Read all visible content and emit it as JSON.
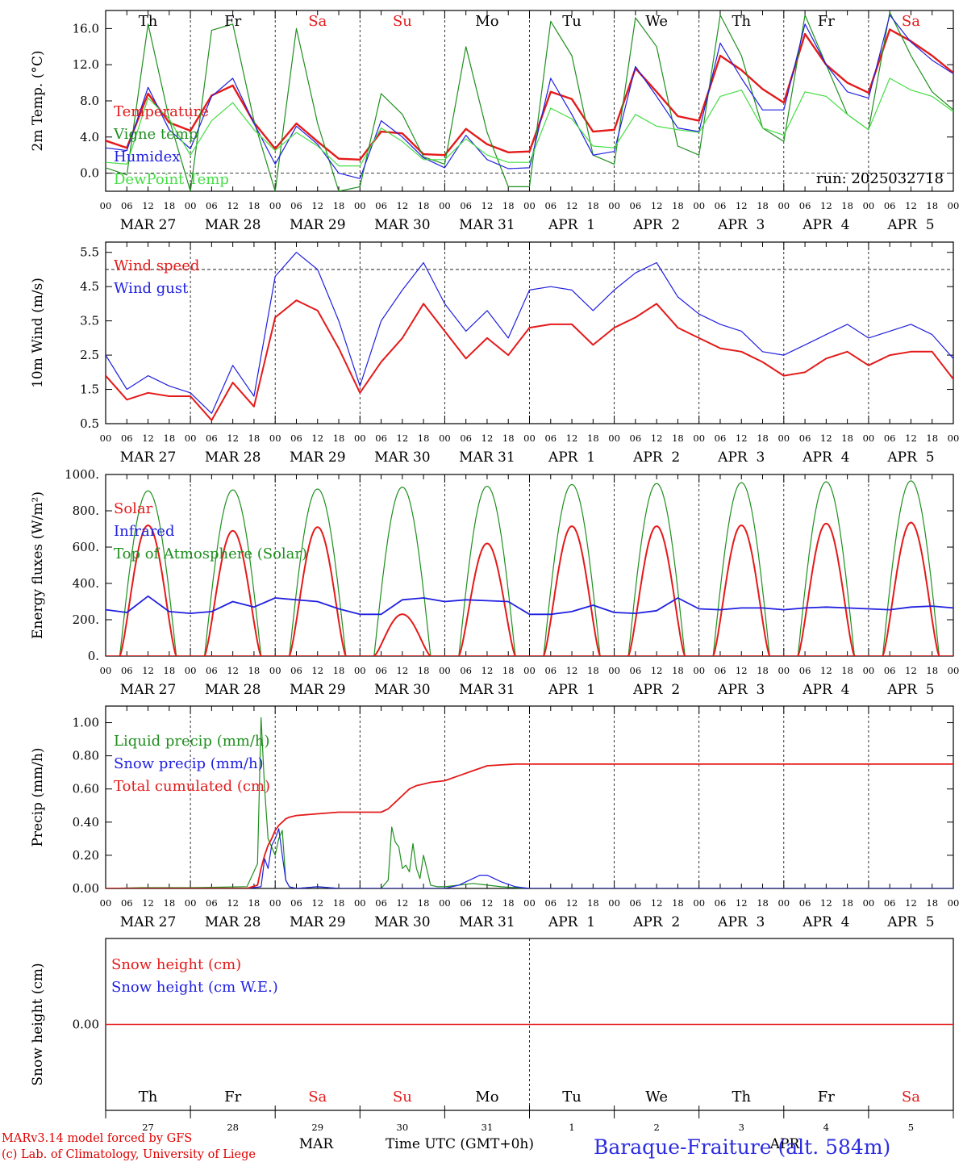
{
  "colors": {
    "red": "#e41a1a",
    "green": "#1f8f1f",
    "blue": "#2020e0",
    "light_green": "#44dd44",
    "black": "#000000"
  },
  "days_of_week": [
    {
      "label": "Th",
      "weekend": false
    },
    {
      "label": "Fr",
      "weekend": false
    },
    {
      "label": "Sa",
      "weekend": true
    },
    {
      "label": "Su",
      "weekend": true
    },
    {
      "label": "Mo",
      "weekend": false
    },
    {
      "label": "Tu",
      "weekend": false
    },
    {
      "label": "We",
      "weekend": false
    },
    {
      "label": "Th",
      "weekend": false
    },
    {
      "label": "Fr",
      "weekend": false
    },
    {
      "label": "Sa",
      "weekend": true
    }
  ],
  "dates": [
    "MAR 27",
    "MAR 28",
    "MAR 29",
    "MAR 30",
    "MAR 31",
    "APR  1",
    "APR  2",
    "APR  3",
    "APR  4",
    "APR  5"
  ],
  "hour_ticks": [
    "00",
    "06",
    "12",
    "18"
  ],
  "hour_end_label": "00",
  "bottom_axis": {
    "day_numbers": [
      "27",
      "28",
      "29",
      "30",
      "31",
      "1",
      "2",
      "3",
      "4",
      "5"
    ],
    "month_left": "MAR",
    "month_right": "APR",
    "xlabel": "Time UTC (GMT+0h)"
  },
  "footer": {
    "model": "MARv3.14 model forced by GFS",
    "credit": "(c) Lab. of Climatology, University of Liege",
    "station": "Baraque-Fraiture (alt. 584m)"
  },
  "chart_data": [
    {
      "type": "line",
      "name": "temperature",
      "ylabel": "2m Temp. (°C)",
      "ylim": [
        -2.0,
        18.0
      ],
      "yticks": [
        "16.0",
        "12.0",
        "8.0",
        "4.0",
        "0.0"
      ],
      "ytick_values": [
        16,
        12,
        8,
        4,
        0
      ],
      "reference_line": 0.0,
      "annotation": "run: 2025032718",
      "legend": [
        {
          "label": "Temperature",
          "color": "#e41a1a"
        },
        {
          "label": "Vigne temp",
          "color": "#1f8f1f"
        },
        {
          "label": "Humidex",
          "color": "#2020e0"
        },
        {
          "label": "DewPoint Temp",
          "color": "#44dd44"
        }
      ],
      "x_hours": [
        0,
        6,
        12,
        18,
        24,
        30,
        36,
        42,
        48,
        54,
        60,
        66,
        72,
        78,
        84,
        90,
        96,
        102,
        108,
        114,
        120,
        126,
        132,
        138,
        144,
        150,
        156,
        162,
        168,
        174,
        180,
        186,
        192,
        198,
        204,
        210,
        216,
        222,
        228,
        234,
        240
      ],
      "series": [
        {
          "name": "Temperature",
          "color": "#e41a1a",
          "width": 2.4,
          "values": [
            3.6,
            2.8,
            8.8,
            5.6,
            4.7,
            8.6,
            9.7,
            5.6,
            2.7,
            5.5,
            3.5,
            1.6,
            1.5,
            4.6,
            4.4,
            2.1,
            2.0,
            4.9,
            3.2,
            2.3,
            2.4,
            9.0,
            8.2,
            4.6,
            4.8,
            11.6,
            9.0,
            6.3,
            5.8,
            13.0,
            11.4,
            9.3,
            7.8,
            15.4,
            12.0,
            10.0,
            8.9,
            15.9,
            14.6,
            13.0,
            11.1
          ]
        },
        {
          "name": "Vigne temp",
          "color": "#1f8f1f",
          "width": 1.2,
          "values": [
            0.6,
            -0.2,
            16.5,
            6.0,
            -2.0,
            15.8,
            16.5,
            5.8,
            -2.0,
            16.0,
            5.5,
            -2.0,
            -1.5,
            8.8,
            6.5,
            1.8,
            1.0,
            14.0,
            4.5,
            -1.5,
            -1.5,
            16.8,
            13.0,
            2.0,
            1.0,
            17.2,
            14.0,
            3.0,
            2.0,
            17.5,
            13.0,
            5.0,
            3.5,
            17.5,
            12.0,
            6.5,
            4.8,
            17.8,
            13.0,
            9.0,
            7.0
          ]
        },
        {
          "name": "Humidex",
          "color": "#2020e0",
          "width": 1.2,
          "values": [
            2.8,
            2.5,
            9.5,
            4.8,
            2.7,
            8.5,
            10.5,
            5.5,
            1.0,
            5.2,
            3.2,
            0.0,
            -0.6,
            5.8,
            4.0,
            1.7,
            0.6,
            4.2,
            1.5,
            0.5,
            0.6,
            10.5,
            6.5,
            2.0,
            2.4,
            11.8,
            8.5,
            5.0,
            4.6,
            14.4,
            10.5,
            7.0,
            7.0,
            16.5,
            12.0,
            9.0,
            8.3,
            17.5,
            14.5,
            12.5,
            11.0
          ]
        },
        {
          "name": "DewPoint Temp",
          "color": "#44dd44",
          "width": 1.2,
          "values": [
            1.2,
            1.0,
            8.3,
            6.0,
            2.0,
            5.8,
            7.8,
            4.8,
            2.5,
            4.5,
            3.0,
            0.8,
            0.8,
            5.0,
            3.5,
            1.5,
            1.5,
            3.8,
            2.0,
            1.2,
            1.2,
            7.2,
            6.0,
            3.0,
            2.8,
            6.5,
            5.2,
            4.8,
            4.5,
            8.5,
            9.2,
            5.0,
            4.2,
            9.0,
            8.5,
            6.5,
            4.8,
            10.5,
            9.2,
            8.5,
            6.8
          ]
        }
      ]
    },
    {
      "type": "line",
      "name": "wind",
      "ylabel": "10m Wind (m/s)",
      "ylim": [
        0.5,
        5.8
      ],
      "yticks": [
        "5.5",
        "4.5",
        "3.5",
        "2.5",
        "1.5",
        "0.5"
      ],
      "ytick_values": [
        5.5,
        4.5,
        3.5,
        2.5,
        1.5,
        0.5
      ],
      "reference_line": 5.0,
      "legend": [
        {
          "label": "Wind speed",
          "color": "#e41a1a"
        },
        {
          "label": "Wind gust",
          "color": "#2020e0"
        }
      ],
      "x_hours": [
        0,
        6,
        12,
        18,
        24,
        30,
        36,
        42,
        48,
        54,
        60,
        66,
        72,
        78,
        84,
        90,
        96,
        102,
        108,
        114,
        120,
        126,
        132,
        138,
        144,
        150,
        156,
        162,
        168,
        174,
        180,
        186,
        192,
        198,
        204,
        210,
        216,
        222,
        228,
        234,
        240
      ],
      "series": [
        {
          "name": "Wind speed",
          "color": "#e41a1a",
          "width": 2.0,
          "values": [
            1.9,
            1.2,
            1.4,
            1.3,
            1.3,
            0.6,
            1.7,
            1.0,
            3.6,
            4.1,
            3.8,
            2.7,
            1.4,
            2.3,
            3.0,
            4.0,
            3.2,
            2.4,
            3.0,
            2.5,
            3.3,
            3.4,
            3.4,
            2.8,
            3.3,
            3.6,
            4.0,
            3.3,
            3.0,
            2.7,
            2.6,
            2.3,
            1.9,
            2.0,
            2.4,
            2.6,
            2.2,
            2.5,
            2.6,
            2.6,
            1.8
          ]
        },
        {
          "name": "Wind gust",
          "color": "#2020e0",
          "width": 1.2,
          "values": [
            2.5,
            1.5,
            1.9,
            1.6,
            1.4,
            0.8,
            2.2,
            1.3,
            4.8,
            5.5,
            5.0,
            3.5,
            1.6,
            3.5,
            4.4,
            5.2,
            4.0,
            3.2,
            3.8,
            3.0,
            4.4,
            4.5,
            4.4,
            3.8,
            4.4,
            4.9,
            5.2,
            4.2,
            3.7,
            3.4,
            3.2,
            2.6,
            2.5,
            2.8,
            3.1,
            3.4,
            3.0,
            3.2,
            3.4,
            3.1,
            2.4
          ]
        }
      ]
    },
    {
      "type": "line",
      "name": "energy",
      "ylabel": "Energy fluxes (W/m²)",
      "ylim": [
        0,
        1000
      ],
      "yticks": [
        "1000.",
        "800.",
        "600.",
        "400.",
        "200.",
        "0."
      ],
      "ytick_values": [
        1000,
        800,
        600,
        400,
        200,
        0
      ],
      "legend": [
        {
          "label": "Solar",
          "color": "#e41a1a"
        },
        {
          "label": "Infrared",
          "color": "#2020e0"
        },
        {
          "label": "Top of Atmosphere (Solar)",
          "color": "#1f8f1f"
        }
      ],
      "solar_daily_peaks": [
        720,
        690,
        710,
        230,
        620,
        715,
        715,
        720,
        730,
        735
      ],
      "toa_daily_peaks": [
        910,
        915,
        920,
        930,
        935,
        945,
        950,
        955,
        960,
        965
      ],
      "infrared_x_hours": [
        0,
        6,
        12,
        18,
        24,
        30,
        36,
        42,
        48,
        54,
        60,
        66,
        72,
        78,
        84,
        90,
        96,
        102,
        108,
        114,
        120,
        126,
        132,
        138,
        144,
        150,
        156,
        162,
        168,
        174,
        180,
        186,
        192,
        198,
        204,
        210,
        216,
        222,
        228,
        234,
        240
      ],
      "infrared_values": [
        255,
        240,
        330,
        245,
        235,
        245,
        300,
        270,
        320,
        310,
        300,
        260,
        230,
        230,
        310,
        320,
        300,
        310,
        305,
        300,
        230,
        230,
        245,
        280,
        240,
        235,
        250,
        320,
        260,
        255,
        265,
        265,
        255,
        265,
        270,
        265,
        260,
        255,
        270,
        275,
        265
      ],
      "series_names": [
        "Solar",
        "Infrared",
        "Top of Atmosphere (Solar)"
      ]
    },
    {
      "type": "line",
      "name": "precip",
      "ylabel": "Precip (mm/h)",
      "ylim": [
        0,
        1.1
      ],
      "yticks": [
        "1.00",
        "0.80",
        "0.60",
        "0.40",
        "0.20",
        "0.00"
      ],
      "ytick_values": [
        1.0,
        0.8,
        0.6,
        0.4,
        0.2,
        0.0
      ],
      "legend": [
        {
          "label": "Liquid precip (mm/h)",
          "color": "#1f8f1f"
        },
        {
          "label": "Snow precip (mm/h)",
          "color": "#2020e0"
        },
        {
          "label": "Total cumulated (cm)",
          "color": "#e41a1a"
        }
      ],
      "series": [
        {
          "name": "Liquid precip (mm/h)",
          "color": "#1f8f1f",
          "width": 1.2,
          "x": [
            0,
            10,
            24,
            40,
            43,
            44,
            45,
            46,
            47,
            48,
            49,
            50,
            51,
            52,
            54,
            60,
            66,
            72,
            78,
            80,
            81,
            82,
            83,
            84,
            85,
            86,
            87,
            88,
            89,
            90,
            92,
            94,
            96,
            100,
            104,
            108,
            112,
            116,
            120,
            240
          ],
          "values": [
            0,
            0.005,
            0.005,
            0.01,
            0.15,
            1.03,
            0.6,
            0.3,
            0.25,
            0.2,
            0.3,
            0.35,
            0.05,
            0.01,
            0.0,
            0.01,
            0.0,
            0.0,
            0.0,
            0.05,
            0.37,
            0.28,
            0.25,
            0.12,
            0.14,
            0.1,
            0.27,
            0.12,
            0.06,
            0.2,
            0.02,
            0.01,
            0.01,
            0.02,
            0.03,
            0.02,
            0.01,
            0.005,
            0.0,
            0.0
          ]
        },
        {
          "name": "Snow precip (mm/h)",
          "color": "#2020e0",
          "width": 1.2,
          "x": [
            0,
            40,
            44,
            45,
            46,
            47,
            48,
            49,
            50,
            51,
            52,
            54,
            60,
            66,
            72,
            96,
            100,
            104,
            106,
            108,
            112,
            116,
            120,
            240
          ],
          "values": [
            0,
            0,
            0.01,
            0.18,
            0.12,
            0.26,
            0.3,
            0.36,
            0.2,
            0.05,
            0.01,
            0.0,
            0.01,
            0.0,
            0.0,
            0.0,
            0.02,
            0.06,
            0.08,
            0.08,
            0.04,
            0.01,
            0.0,
            0.0
          ]
        },
        {
          "name": "Total cumulated (cm)",
          "color": "#e41a1a",
          "width": 1.8,
          "x": [
            0,
            40,
            43,
            44,
            45,
            46,
            47,
            48,
            49,
            50,
            51,
            52,
            54,
            60,
            66,
            72,
            78,
            80,
            82,
            84,
            86,
            88,
            90,
            92,
            96,
            100,
            104,
            108,
            112,
            116,
            120,
            240
          ],
          "values": [
            0,
            0,
            0.02,
            0.12,
            0.2,
            0.26,
            0.3,
            0.35,
            0.38,
            0.4,
            0.42,
            0.43,
            0.44,
            0.45,
            0.46,
            0.46,
            0.46,
            0.48,
            0.52,
            0.56,
            0.6,
            0.62,
            0.63,
            0.64,
            0.65,
            0.68,
            0.71,
            0.74,
            0.745,
            0.75,
            0.75,
            0.75
          ]
        }
      ]
    },
    {
      "type": "line",
      "name": "snow",
      "ylabel": "Snow height (cm)",
      "ylim": [
        -1,
        1
      ],
      "yticks": [
        "0.00"
      ],
      "ytick_values": [
        0
      ],
      "legend": [
        {
          "label": "Snow height (cm)",
          "color": "#e41a1a"
        },
        {
          "label": "Snow height (cm W.E.)",
          "color": "#2020e0"
        }
      ],
      "series": [
        {
          "name": "Snow height (cm)",
          "color": "#e41a1a",
          "width": 1.5,
          "x": [
            0,
            240
          ],
          "values": [
            0,
            0
          ]
        }
      ]
    }
  ]
}
